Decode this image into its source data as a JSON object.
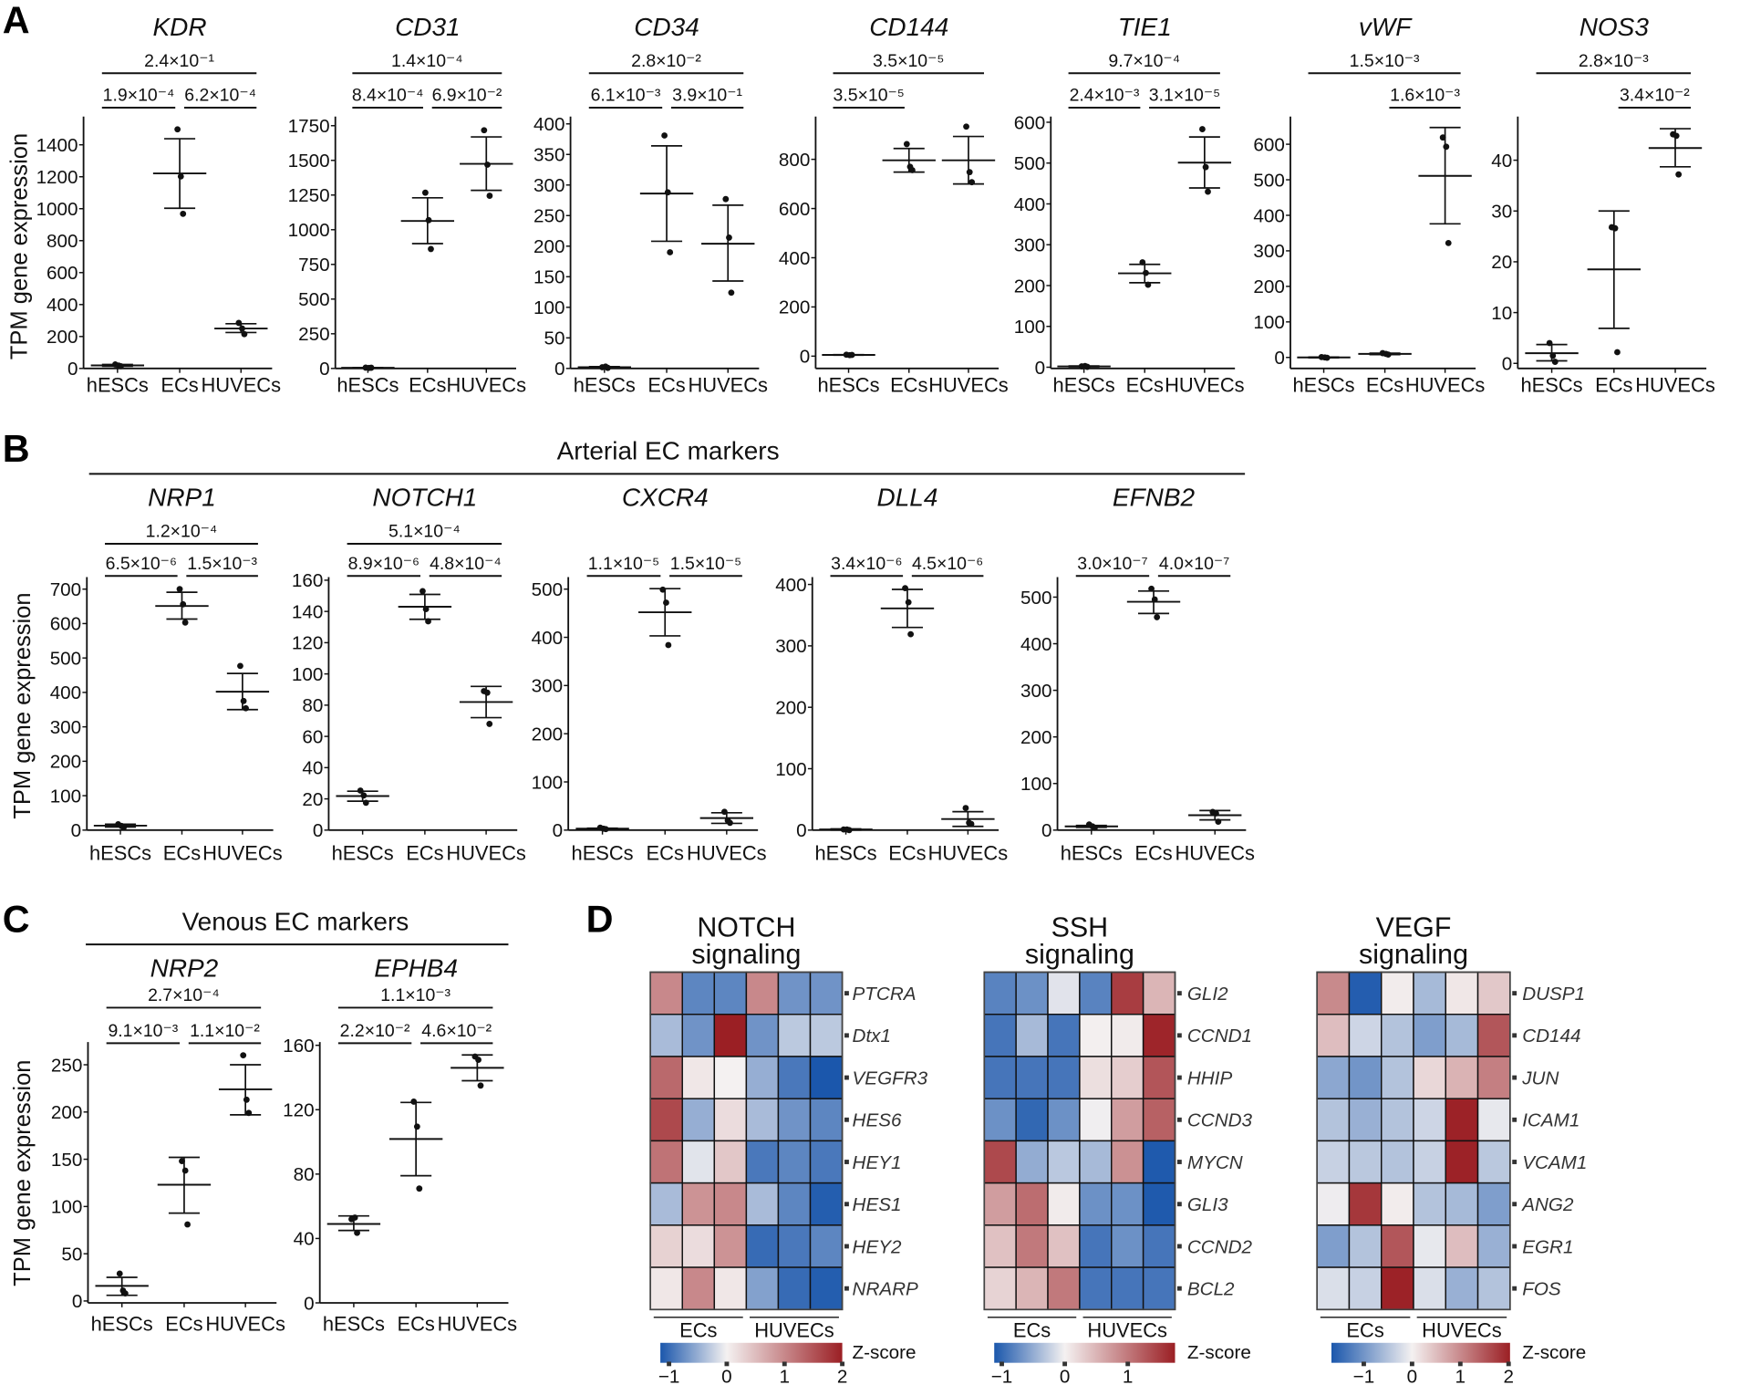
{
  "figure": {
    "panel_labels": {
      "A": "A",
      "B": "B",
      "C": "C",
      "D": "D"
    },
    "ylabel": "TPM gene expression",
    "arterial_title": "Arterial EC markers",
    "venous_title": "Venous EC markers",
    "heatmap_legend_title": "Z-score",
    "colors": {
      "blue": "#1b57ac",
      "neutral": "#f4f1f1",
      "red": "#9b1f24",
      "ink": "#111111"
    }
  },
  "chart_data": [
    {
      "panel": "A",
      "type": "scatter",
      "title": "KDR",
      "categories": [
        "hESCs",
        "ECs",
        "HUVECs"
      ],
      "ylim": [
        0,
        1577
      ],
      "yticks": [
        0,
        200,
        400,
        600,
        800,
        1000,
        1200,
        1400
      ],
      "points": [
        [
          25,
          18,
          14
        ],
        [
          1497,
          1202,
          968
        ],
        [
          285,
          250,
          215
        ]
      ],
      "mean": [
        19,
        1221,
        250
      ],
      "error": [
        [
          14,
          25
        ],
        [
          1003,
          1438
        ],
        [
          225,
          280
        ]
      ],
      "pvalues": [
        {
          "label": "2.4×10⁻¹",
          "from": 0,
          "to": 2
        },
        {
          "label": "1.9×10⁻⁴",
          "from": 0,
          "to": 1
        },
        {
          "label": "6.2×10⁻⁴",
          "from": 1,
          "to": 2
        }
      ]
    },
    {
      "panel": "A",
      "type": "scatter",
      "title": "CD31",
      "categories": [
        "hESCs",
        "ECs",
        "HUVECs"
      ],
      "ylim": [
        0,
        1816
      ],
      "yticks": [
        0,
        250,
        500,
        750,
        1000,
        1250,
        1500,
        1750
      ],
      "points": [
        [
          6,
          4,
          5
        ],
        [
          1267,
          1069,
          861
        ],
        [
          1717,
          1469,
          1245
        ]
      ],
      "mean": [
        5,
        1063,
        1475
      ],
      "error": [
        [
          4,
          6
        ],
        [
          900,
          1230
        ],
        [
          1284,
          1669
        ]
      ],
      "pvalues": [
        {
          "label": "1.4×10⁻⁴",
          "from": 0,
          "to": 2
        },
        {
          "label": "8.4×10⁻⁴",
          "from": 0,
          "to": 1
        },
        {
          "label": "6.9×10⁻²",
          "from": 1,
          "to": 2
        }
      ]
    },
    {
      "panel": "A",
      "type": "scatter",
      "title": "CD34",
      "categories": [
        "hESCs",
        "ECs",
        "HUVECs"
      ],
      "ylim": [
        0,
        412
      ],
      "yticks": [
        0,
        50,
        100,
        150,
        200,
        250,
        300,
        350,
        400
      ],
      "points": [
        [
          2,
          3,
          1
        ],
        [
          381,
          288,
          190
        ],
        [
          277,
          214,
          124
        ]
      ],
      "mean": [
        2,
        286,
        204
      ],
      "error": [
        [
          1,
          3
        ],
        [
          208,
          364
        ],
        [
          143,
          267
        ]
      ],
      "pvalues": [
        {
          "label": "2.8×10⁻²",
          "from": 0,
          "to": 2
        },
        {
          "label": "6.1×10⁻³",
          "from": 0,
          "to": 1
        },
        {
          "label": "3.9×10⁻¹",
          "from": 1,
          "to": 2
        }
      ]
    },
    {
      "panel": "A",
      "type": "scatter",
      "title": "CD144",
      "categories": [
        "hESCs",
        "ECs",
        "HUVECs"
      ],
      "ylim": [
        -50,
        974
      ],
      "yticks": [
        0,
        200,
        400,
        600,
        800
      ],
      "points": [
        [
          6,
          4,
          5
        ],
        [
          862,
          770,
          756
        ],
        [
          933,
          748,
          707
        ]
      ],
      "mean": [
        5,
        796,
        796
      ],
      "error": [
        [
          4,
          6
        ],
        [
          748,
          844
        ],
        [
          700,
          893
        ]
      ],
      "pvalues": [
        {
          "label": "3.5×10⁻⁵",
          "from": 0,
          "to": 2
        },
        {
          "label": "3.5×10⁻⁵",
          "from": 0,
          "to": 1
        }
      ]
    },
    {
      "panel": "A",
      "type": "scatter",
      "title": "TIE1",
      "categories": [
        "hESCs",
        "ECs",
        "HUVECs"
      ],
      "ylim": [
        -3,
        614
      ],
      "yticks": [
        0,
        100,
        200,
        300,
        400,
        500,
        600
      ],
      "points": [
        [
          2,
          3,
          1
        ],
        [
          257,
          231,
          202
        ],
        [
          583,
          490,
          430
        ]
      ],
      "mean": [
        2,
        230,
        501
      ],
      "error": [
        [
          1,
          3
        ],
        [
          207,
          252
        ],
        [
          439,
          564
        ]
      ],
      "pvalues": [
        {
          "label": "9.7×10⁻⁴",
          "from": 0,
          "to": 2
        },
        {
          "label": "2.4×10⁻³",
          "from": 0,
          "to": 1
        },
        {
          "label": "3.1×10⁻⁵",
          "from": 1,
          "to": 2
        }
      ]
    },
    {
      "panel": "A",
      "type": "scatter",
      "title": "vWF",
      "categories": [
        "hESCs",
        "ECs",
        "HUVECs"
      ],
      "ylim": [
        -31,
        678
      ],
      "yticks": [
        0,
        100,
        200,
        300,
        400,
        500,
        600
      ],
      "points": [
        [
          1,
          0,
          -1
        ],
        [
          12,
          10,
          8
        ],
        [
          619,
          593,
          322
        ]
      ],
      "mean": [
        0,
        10,
        511
      ],
      "error": [
        [
          -1,
          1
        ],
        [
          8,
          12
        ],
        [
          376,
          647
        ]
      ],
      "pvalues": [
        {
          "label": "1.5×10⁻³",
          "from": 0,
          "to": 2
        },
        {
          "label": "1.6×10⁻³",
          "from": 1,
          "to": 2
        }
      ]
    },
    {
      "panel": "A",
      "type": "scatter",
      "title": "NOS3",
      "categories": [
        "hESCs",
        "ECs",
        "HUVECs"
      ],
      "ylim": [
        -1,
        48.6
      ],
      "yticks": [
        0,
        10,
        20,
        30,
        40
      ],
      "points": [
        [
          4.0,
          1.5,
          0.3
        ],
        [
          26.8,
          26.6,
          2.2
        ],
        [
          45.1,
          44.8,
          37.2
        ]
      ],
      "mean": [
        2.0,
        18.5,
        42.4
      ],
      "error": [
        [
          0.5,
          3.7
        ],
        [
          6.9,
          30.0
        ],
        [
          38.7,
          46.2
        ]
      ],
      "pvalues": [
        {
          "label": "2.8×10⁻³",
          "from": 0,
          "to": 2
        },
        {
          "label": "3.4×10⁻²",
          "from": 1,
          "to": 2
        }
      ]
    },
    {
      "panel": "B",
      "type": "scatter",
      "title": "NRP1",
      "categories": [
        "hESCs",
        "ECs",
        "HUVECs"
      ],
      "ylim": [
        0,
        735
      ],
      "yticks": [
        0,
        100,
        200,
        300,
        400,
        500,
        600,
        700
      ],
      "points": [
        [
          17,
          12,
          8
        ],
        [
          700,
          656,
          603
        ],
        [
          477,
          375,
          354
        ]
      ],
      "mean": [
        13,
        651,
        402
      ],
      "error": [
        [
          9,
          17
        ],
        [
          613,
          691
        ],
        [
          350,
          455
        ]
      ],
      "pvalues": [
        {
          "label": "1.2×10⁻⁴",
          "from": 0,
          "to": 2
        },
        {
          "label": "6.5×10⁻⁶",
          "from": 0,
          "to": 1
        },
        {
          "label": "1.5×10⁻³",
          "from": 1,
          "to": 2
        }
      ]
    },
    {
      "panel": "B",
      "type": "scatter",
      "title": "NOTCH1",
      "categories": [
        "hESCs",
        "ECs",
        "HUVECs"
      ],
      "ylim": [
        0,
        162
      ],
      "yticks": [
        0,
        20,
        40,
        60,
        80,
        100,
        120,
        140,
        160
      ],
      "points": [
        [
          25.3,
          22.2,
          17.5
        ],
        [
          153,
          141.5,
          133.7
        ],
        [
          89,
          88,
          68
        ]
      ],
      "mean": [
        21.8,
        143,
        82
      ],
      "error": [
        [
          18.5,
          24.9
        ],
        [
          135,
          150.9
        ],
        [
          72,
          92
        ]
      ],
      "pvalues": [
        {
          "label": "5.1×10⁻⁴",
          "from": 0,
          "to": 2
        },
        {
          "label": "8.9×10⁻⁶",
          "from": 0,
          "to": 1
        },
        {
          "label": "4.8×10⁻⁴",
          "from": 1,
          "to": 2
        }
      ]
    },
    {
      "panel": "B",
      "type": "scatter",
      "title": "CXCR4",
      "categories": [
        "hESCs",
        "ECs",
        "HUVECs"
      ],
      "ylim": [
        0,
        525
      ],
      "yticks": [
        0,
        100,
        200,
        300,
        400,
        500
      ],
      "points": [
        [
          5,
          3,
          2
        ],
        [
          499,
          472,
          384
        ],
        [
          38,
          20,
          15
        ]
      ],
      "mean": [
        3,
        452,
        25
      ],
      "error": [
        [
          2,
          4
        ],
        [
          403,
          501
        ],
        [
          14,
          36
        ]
      ],
      "pvalues": [
        {
          "label": "1.1×10⁻⁵",
          "from": 0,
          "to": 1
        },
        {
          "label": "1.5×10⁻⁵",
          "from": 1,
          "to": 2
        }
      ]
    },
    {
      "panel": "B",
      "type": "scatter",
      "title": "DLL4",
      "categories": [
        "hESCs",
        "ECs",
        "HUVECs"
      ],
      "ylim": [
        0,
        412
      ],
      "yticks": [
        0,
        100,
        200,
        300,
        400
      ],
      "points": [
        [
          1,
          1,
          0
        ],
        [
          394,
          371,
          319
        ],
        [
          36,
          12,
          10
        ]
      ],
      "mean": [
        1,
        361,
        18
      ],
      "error": [
        [
          0,
          2
        ],
        [
          330,
          392
        ],
        [
          6,
          30
        ]
      ],
      "pvalues": [
        {
          "label": "3.4×10⁻⁶",
          "from": 0,
          "to": 1
        },
        {
          "label": "4.5×10⁻⁶",
          "from": 1,
          "to": 2
        }
      ]
    },
    {
      "panel": "B",
      "type": "scatter",
      "title": "EFNB2",
      "categories": [
        "hESCs",
        "ECs",
        "HUVECs"
      ],
      "ylim": [
        0,
        543
      ],
      "yticks": [
        0,
        100,
        200,
        300,
        400,
        500
      ],
      "points": [
        [
          12,
          8,
          5
        ],
        [
          518,
          495,
          457
        ],
        [
          39,
          36,
          18
        ]
      ],
      "mean": [
        8,
        490,
        32
      ],
      "error": [
        [
          6,
          10
        ],
        [
          465,
          513
        ],
        [
          22,
          42
        ]
      ],
      "pvalues": [
        {
          "label": "3.0×10⁻⁷",
          "from": 0,
          "to": 1
        },
        {
          "label": "4.0×10⁻⁷",
          "from": 1,
          "to": 2
        }
      ]
    },
    {
      "panel": "C",
      "type": "scatter",
      "title": "NRP2",
      "categories": [
        "hESCs",
        "ECs",
        "HUVECs"
      ],
      "ylim": [
        -2,
        274
      ],
      "yticks": [
        0,
        50,
        100,
        150,
        200,
        250
      ],
      "points": [
        [
          29,
          11,
          8
        ],
        [
          148,
          138,
          81
        ],
        [
          260,
          213,
          199
        ]
      ],
      "mean": [
        16,
        123,
        224
      ],
      "error": [
        [
          6,
          25
        ],
        [
          93,
          152
        ],
        [
          197,
          250
        ]
      ],
      "pvalues": [
        {
          "label": "2.7×10⁻⁴",
          "from": 0,
          "to": 2
        },
        {
          "label": "9.1×10⁻³",
          "from": 0,
          "to": 1
        },
        {
          "label": "1.1×10⁻²",
          "from": 1,
          "to": 2
        }
      ]
    },
    {
      "panel": "C",
      "type": "scatter",
      "title": "EPHB4",
      "categories": [
        "hESCs",
        "ECs",
        "HUVECs"
      ],
      "ylim": [
        0,
        162
      ],
      "yticks": [
        0,
        40,
        80,
        120,
        160
      ],
      "points": [
        [
          52,
          53,
          43.5
        ],
        [
          125,
          109.5,
          71
        ],
        [
          153,
          151,
          135
        ]
      ],
      "mean": [
        49,
        101.8,
        146
      ],
      "error": [
        [
          45,
          54
        ],
        [
          79,
          124.5
        ],
        [
          138,
          154
        ]
      ],
      "pvalues": [
        {
          "label": "1.1×10⁻³",
          "from": 0,
          "to": 2
        },
        {
          "label": "2.2×10⁻²",
          "from": 0,
          "to": 1
        },
        {
          "label": "4.6×10⁻²",
          "from": 1,
          "to": 2
        }
      ]
    },
    {
      "panel": "D",
      "type": "heatmap",
      "title": [
        "NOTCH",
        "signaling"
      ],
      "column_groups": [
        "ECs",
        "HUVECs"
      ],
      "columns_per_group": 3,
      "rows": [
        "PTCRA",
        "Dtx1",
        "VEGFR3",
        "HES6",
        "HEY1",
        "HES1",
        "HEY2",
        "NRARP"
      ],
      "values": [
        [
          1.0,
          -0.8,
          -0.8,
          1.0,
          -0.7,
          -0.7
        ],
        [
          -0.4,
          -0.7,
          2.0,
          -0.7,
          -0.3,
          -0.3
        ],
        [
          1.3,
          0.1,
          0.0,
          -0.5,
          -0.9,
          -1.15
        ],
        [
          1.6,
          -0.5,
          0.2,
          -0.4,
          -0.7,
          -0.8
        ],
        [
          1.2,
          -0.1,
          0.4,
          -0.9,
          -0.8,
          -0.9
        ],
        [
          -0.4,
          0.9,
          1.0,
          -0.4,
          -0.8,
          -1.1
        ],
        [
          0.3,
          0.2,
          0.9,
          -1.0,
          -0.9,
          -0.8
        ],
        [
          0.1,
          1.0,
          0.1,
          -0.6,
          -1.0,
          -1.1
        ]
      ],
      "colorbar": {
        "range": [
          -1.15,
          2.0
        ],
        "ticks": [
          -1,
          0,
          1,
          2
        ],
        "tick_labels": [
          "−1",
          "0",
          "1",
          "2"
        ]
      }
    },
    {
      "panel": "D",
      "type": "heatmap",
      "title": [
        "SSH",
        "signaling"
      ],
      "column_groups": [
        "ECs",
        "HUVECs"
      ],
      "columns_per_group": 3,
      "rows": [
        "GLI2",
        "CCND1",
        "HHIP",
        "CCND3",
        "MYCN",
        "GLI3",
        "CCND2",
        "BCL2"
      ],
      "values": [
        [
          -0.8,
          -0.7,
          -0.1,
          -0.8,
          1.5,
          0.5
        ],
        [
          -0.9,
          -0.4,
          -0.9,
          0.02,
          0.05,
          1.7
        ],
        [
          -0.9,
          -0.9,
          -0.9,
          0.15,
          0.3,
          1.3
        ],
        [
          -0.7,
          -1.0,
          -0.7,
          -0.02,
          0.7,
          1.2
        ],
        [
          1.4,
          -0.5,
          -0.3,
          -0.4,
          0.8,
          -1.1
        ],
        [
          0.7,
          1.1,
          0.05,
          -0.7,
          -0.7,
          -1.1
        ],
        [
          0.4,
          1.0,
          0.4,
          -0.9,
          -0.7,
          -0.9
        ],
        [
          0.25,
          0.5,
          1.0,
          -0.9,
          -0.9,
          -0.9
        ]
      ],
      "colorbar": {
        "range": [
          -1.12,
          1.75
        ],
        "ticks": [
          -1,
          0,
          1
        ],
        "tick_labels": [
          "−1",
          "0",
          "1"
        ]
      }
    },
    {
      "panel": "D",
      "type": "heatmap",
      "title": [
        "VEGF",
        "signaling"
      ],
      "column_groups": [
        "ECs",
        "HUVECs"
      ],
      "columns_per_group": 3,
      "rows": [
        "DUSP1",
        "CD144",
        "JUN",
        "ICAM1",
        "VCAM1",
        "ANG2",
        "EGR1",
        "FOS"
      ],
      "values": [
        [
          1.0,
          -1.6,
          0.05,
          -0.6,
          0.1,
          0.4
        ],
        [
          0.5,
          -0.3,
          -0.5,
          -0.9,
          -0.6,
          1.5
        ],
        [
          -0.8,
          -1.0,
          -0.5,
          0.25,
          0.6,
          1.1
        ],
        [
          -0.5,
          -0.7,
          -0.5,
          -0.3,
          2.0,
          -0.1
        ],
        [
          -0.35,
          -0.45,
          -0.5,
          -0.35,
          2.0,
          -0.45
        ],
        [
          -0.05,
          1.8,
          0.05,
          -0.5,
          -0.6,
          -0.9
        ],
        [
          -0.9,
          -0.5,
          1.5,
          -0.1,
          0.5,
          -0.7
        ],
        [
          -0.2,
          -0.35,
          2.0,
          -0.2,
          -0.7,
          -0.5
        ]
      ],
      "colorbar": {
        "range": [
          -1.67,
          2.03
        ],
        "ticks": [
          -1,
          0,
          1,
          2
        ],
        "tick_labels": [
          "−1",
          "0",
          "1",
          "2"
        ]
      }
    }
  ]
}
